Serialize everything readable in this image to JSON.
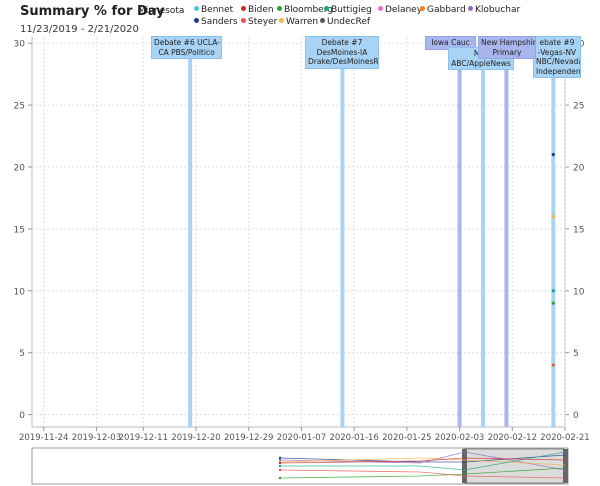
{
  "title": "Summary % for Day",
  "state": "Minnesota",
  "date_range": "11/23/2019 - 2/21/2020",
  "legend": [
    {
      "name": "Bennet",
      "color": "#4fc3d9"
    },
    {
      "name": "Biden",
      "color": "#d62728"
    },
    {
      "name": "Bloomberg",
      "color": "#2ca02c"
    },
    {
      "name": "Buttigieg",
      "color": "#17a589"
    },
    {
      "name": "Delaney",
      "color": "#e377c2"
    },
    {
      "name": "Gabbard",
      "color": "#ff7f0e"
    },
    {
      "name": "Klobuchar",
      "color": "#9467bd"
    },
    {
      "name": "Sanders",
      "color": "#1f3c88"
    },
    {
      "name": "Steyer",
      "color": "#e8554e"
    },
    {
      "name": "Warren",
      "color": "#f5b041"
    },
    {
      "name": "UndecRef",
      "color": "#555555"
    }
  ],
  "events": [
    {
      "date": "2019-12-19",
      "label": [
        "Debate #6 UCLA-",
        "CA PBS/Politico"
      ],
      "style": "light"
    },
    {
      "date": "2020-01-14",
      "label": [
        "Debate #7",
        "DesMoines-IA",
        "Drake/DesMoinesReg"
      ],
      "style": "light"
    },
    {
      "date": "2020-02-03",
      "label": [
        "Iowa Cauc"
      ],
      "style": "dark"
    },
    {
      "date": "2020-02-07",
      "label": [
        "Mar",
        "ABC/AppleNews"
      ],
      "style": "light"
    },
    {
      "date": "2020-02-11",
      "label": [
        "New Hampshire",
        "Primary"
      ],
      "style": "dark"
    },
    {
      "date": "2020-02-19",
      "label": [
        "ebate #9",
        "-Vegas-NV",
        "NBC/Nevada",
        "Independent"
      ],
      "style": "light"
    }
  ],
  "chart_data": {
    "type": "scatter",
    "title": "Summary % for Day",
    "xlabel": "",
    "ylabel": "",
    "xlim": [
      "2019-11-22",
      "2020-02-21"
    ],
    "ylim": [
      -1,
      30.5
    ],
    "x_ticks": [
      "2019-11-24",
      "2019-12-03",
      "2019-12-11",
      "2019-12-20",
      "2019-12-29",
      "2020-01-07",
      "2020-01-16",
      "2020-01-25",
      "2020-02-03",
      "2020-02-12",
      "2020-02-21"
    ],
    "y_ticks": [
      0,
      5,
      10,
      15,
      20,
      25,
      30
    ],
    "grid": true,
    "series": [
      {
        "name": "Sanders",
        "x": [
          "2020-02-19"
        ],
        "values": [
          21
        ]
      },
      {
        "name": "Warren",
        "x": [
          "2020-02-19"
        ],
        "values": [
          16
        ]
      },
      {
        "name": "Buttigieg",
        "x": [
          "2020-02-19"
        ],
        "values": [
          10
        ]
      },
      {
        "name": "Bloomberg",
        "x": [
          "2020-02-19"
        ],
        "values": [
          9
        ]
      },
      {
        "name": "Steyer",
        "x": [
          "2020-02-19"
        ],
        "values": [
          4
        ]
      }
    ]
  }
}
